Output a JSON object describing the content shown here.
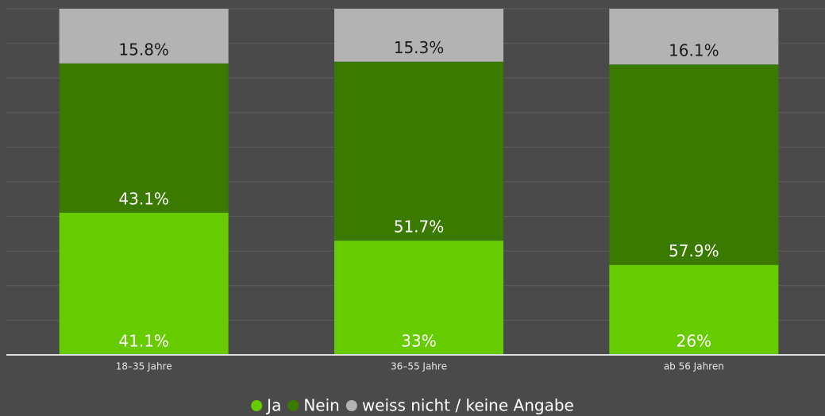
{
  "chart_data": {
    "type": "stacked-bar",
    "categories": [
      "18–35 Jahre",
      "36–55 Jahre",
      "ab 56 Jahren"
    ],
    "series": [
      {
        "name": "Ja",
        "color": "#66cc00",
        "values": [
          41.1,
          33,
          26
        ],
        "value_labels": [
          "41.1%",
          "33%",
          "26%"
        ]
      },
      {
        "name": "Nein",
        "color": "#3b7a00",
        "values": [
          43.1,
          51.7,
          57.9
        ],
        "value_labels": [
          "43.1%",
          "51.7%",
          "57.9%"
        ]
      },
      {
        "name": "weiss nicht / keine Angabe",
        "color": "#b3b3b3",
        "values": [
          15.8,
          15.3,
          16.1
        ],
        "value_labels": [
          "15.8%",
          "15.3%",
          "16.1%"
        ]
      }
    ],
    "ylim": [
      0,
      100
    ],
    "yticks": [
      0,
      10,
      20,
      30,
      40,
      50,
      60,
      70,
      80,
      90,
      100
    ],
    "grid": true
  }
}
